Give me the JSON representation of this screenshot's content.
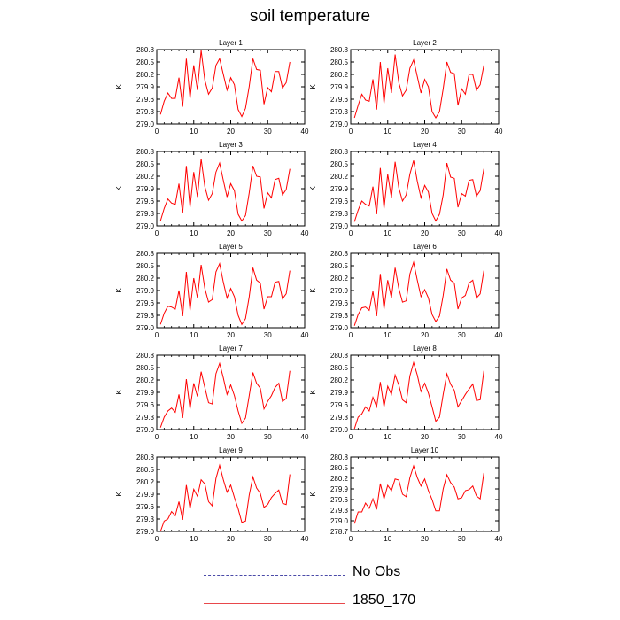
{
  "title": "soil temperature",
  "legend": [
    {
      "label": "No Obs",
      "style": "dashed",
      "color": "#4a4aa8"
    },
    {
      "label": "1850_170",
      "style": "solid",
      "color": "#ff0000"
    }
  ],
  "colors": {
    "series": "#ff0000",
    "axis": "#000000"
  },
  "chart_data": [
    {
      "type": "line",
      "title": "Layer 1",
      "ylabel": "K",
      "xlim": [
        0,
        40
      ],
      "ylim": [
        279.0,
        280.8
      ],
      "xticks": [
        "0",
        "10",
        "20",
        "30",
        "40"
      ],
      "yticks": [
        "279.0",
        "279.3",
        "279.6",
        "279.9",
        "280.2",
        "280.5",
        "280.8"
      ],
      "series": [
        {
          "x": [
            1,
            2,
            3,
            4,
            5,
            6,
            7,
            8,
            9,
            10,
            11,
            12,
            13,
            14,
            15,
            16,
            17,
            18,
            19,
            20,
            21,
            22,
            23,
            24,
            25,
            26,
            27,
            28,
            29,
            30,
            31,
            32,
            33,
            34,
            35,
            36
          ],
          "values": [
            279.23,
            279.55,
            279.75,
            279.62,
            279.62,
            280.12,
            279.42,
            280.58,
            279.62,
            280.42,
            279.82,
            280.78,
            280.06,
            279.72,
            279.87,
            280.42,
            280.58,
            280.2,
            279.82,
            280.12,
            279.95,
            279.35,
            279.18,
            279.38,
            279.91,
            280.58,
            280.32,
            280.3,
            279.48,
            279.88,
            279.78,
            280.27,
            280.27,
            279.87,
            280.0,
            280.5
          ]
        }
      ]
    },
    {
      "type": "line",
      "title": "Layer 2",
      "ylabel": "K",
      "xlim": [
        0,
        40
      ],
      "ylim": [
        279.0,
        280.8
      ],
      "xticks": [
        "0",
        "10",
        "20",
        "30",
        "40"
      ],
      "yticks": [
        "279.0",
        "279.3",
        "279.6",
        "279.9",
        "280.2",
        "280.5",
        "280.8"
      ],
      "series": [
        {
          "x": [
            1,
            2,
            3,
            4,
            5,
            6,
            7,
            8,
            9,
            10,
            11,
            12,
            13,
            14,
            15,
            16,
            17,
            18,
            19,
            20,
            21,
            22,
            23,
            24,
            25,
            26,
            27,
            28,
            29,
            30,
            31,
            32,
            33,
            34,
            35,
            36
          ],
          "values": [
            279.15,
            279.45,
            279.72,
            279.58,
            279.55,
            280.08,
            279.35,
            280.5,
            279.5,
            280.35,
            279.75,
            280.68,
            280.0,
            279.68,
            279.82,
            280.35,
            280.55,
            280.15,
            279.75,
            280.08,
            279.9,
            279.3,
            279.15,
            279.3,
            279.85,
            280.5,
            280.25,
            280.22,
            279.45,
            279.85,
            279.72,
            280.2,
            280.2,
            279.82,
            279.95,
            280.42
          ]
        }
      ]
    },
    {
      "type": "line",
      "title": "Layer 3",
      "ylabel": "K",
      "xlim": [
        0,
        40
      ],
      "ylim": [
        279.0,
        280.8
      ],
      "xticks": [
        "0",
        "10",
        "20",
        "30",
        "40"
      ],
      "yticks": [
        "279.0",
        "279.3",
        "279.6",
        "279.9",
        "280.2",
        "280.5",
        "280.8"
      ],
      "series": [
        {
          "x": [
            1,
            2,
            3,
            4,
            5,
            6,
            7,
            8,
            9,
            10,
            11,
            12,
            13,
            14,
            15,
            16,
            17,
            18,
            19,
            20,
            21,
            22,
            23,
            24,
            25,
            26,
            27,
            28,
            29,
            30,
            31,
            32,
            33,
            34,
            35,
            36
          ],
          "values": [
            279.12,
            279.42,
            279.65,
            279.55,
            279.52,
            280.02,
            279.3,
            280.45,
            279.45,
            280.3,
            279.7,
            280.62,
            279.95,
            279.62,
            279.78,
            280.3,
            280.52,
            280.1,
            279.7,
            280.02,
            279.85,
            279.28,
            279.12,
            279.25,
            279.8,
            280.45,
            280.2,
            280.18,
            279.42,
            279.8,
            279.68,
            280.12,
            280.15,
            279.75,
            279.88,
            280.38
          ]
        }
      ]
    },
    {
      "type": "line",
      "title": "Layer 4",
      "ylabel": "K",
      "xlim": [
        0,
        40
      ],
      "ylim": [
        279.0,
        280.8
      ],
      "xticks": [
        "0",
        "10",
        "20",
        "30",
        "40"
      ],
      "yticks": [
        "279.0",
        "279.3",
        "279.6",
        "279.9",
        "280.2",
        "280.5",
        "280.8"
      ],
      "series": [
        {
          "x": [
            1,
            2,
            3,
            4,
            5,
            6,
            7,
            8,
            9,
            10,
            11,
            12,
            13,
            14,
            15,
            16,
            17,
            18,
            19,
            20,
            21,
            22,
            23,
            24,
            25,
            26,
            27,
            28,
            29,
            30,
            31,
            32,
            33,
            34,
            35,
            36
          ],
          "values": [
            279.1,
            279.38,
            279.6,
            279.52,
            279.48,
            279.95,
            279.28,
            280.4,
            279.42,
            280.25,
            279.68,
            280.55,
            279.92,
            279.6,
            279.75,
            280.25,
            280.58,
            280.08,
            279.68,
            279.98,
            279.82,
            279.3,
            279.12,
            279.28,
            279.75,
            280.52,
            280.18,
            280.15,
            279.45,
            279.78,
            279.72,
            280.1,
            280.12,
            279.72,
            279.85,
            280.38
          ]
        }
      ]
    },
    {
      "type": "line",
      "title": "Layer 5",
      "ylabel": "K",
      "xlim": [
        0,
        40
      ],
      "ylim": [
        279.0,
        280.8
      ],
      "xticks": [
        "0",
        "10",
        "20",
        "30",
        "40"
      ],
      "yticks": [
        "279.0",
        "279.3",
        "279.6",
        "279.9",
        "280.2",
        "280.5",
        "280.8"
      ],
      "series": [
        {
          "x": [
            1,
            2,
            3,
            4,
            5,
            6,
            7,
            8,
            9,
            10,
            11,
            12,
            13,
            14,
            15,
            16,
            17,
            18,
            19,
            20,
            21,
            22,
            23,
            24,
            25,
            26,
            27,
            28,
            29,
            30,
            31,
            32,
            33,
            34,
            35,
            36
          ],
          "values": [
            279.08,
            279.35,
            279.52,
            279.5,
            279.45,
            279.9,
            279.28,
            280.35,
            279.42,
            280.2,
            279.72,
            280.52,
            279.95,
            279.62,
            279.68,
            280.35,
            280.55,
            280.1,
            279.72,
            279.95,
            279.75,
            279.3,
            279.08,
            279.22,
            279.75,
            280.45,
            280.15,
            280.08,
            279.45,
            279.75,
            279.75,
            280.1,
            280.12,
            279.7,
            279.82,
            280.38
          ]
        }
      ]
    },
    {
      "type": "line",
      "title": "Layer 6",
      "ylabel": "K",
      "xlim": [
        0,
        40
      ],
      "ylim": [
        279.0,
        280.8
      ],
      "xticks": [
        "0",
        "10",
        "20",
        "30",
        "40"
      ],
      "yticks": [
        "279.0",
        "279.3",
        "279.6",
        "279.9",
        "280.2",
        "280.5",
        "280.8"
      ],
      "series": [
        {
          "x": [
            1,
            2,
            3,
            4,
            5,
            6,
            7,
            8,
            9,
            10,
            11,
            12,
            13,
            14,
            15,
            16,
            17,
            18,
            19,
            20,
            21,
            22,
            23,
            24,
            25,
            26,
            27,
            28,
            29,
            30,
            31,
            32,
            33,
            34,
            35,
            36
          ],
          "values": [
            279.05,
            279.32,
            279.48,
            279.5,
            279.42,
            279.88,
            279.28,
            280.3,
            279.45,
            280.15,
            279.72,
            280.45,
            279.95,
            279.62,
            279.65,
            280.3,
            280.58,
            280.15,
            279.75,
            279.92,
            279.72,
            279.32,
            279.15,
            279.28,
            279.78,
            280.42,
            280.15,
            280.08,
            279.45,
            279.72,
            279.78,
            280.08,
            280.15,
            279.72,
            279.82,
            280.38
          ]
        }
      ]
    },
    {
      "type": "line",
      "title": "Layer 7",
      "ylabel": "K",
      "xlim": [
        0,
        40
      ],
      "ylim": [
        279.0,
        280.8
      ],
      "xticks": [
        "0",
        "10",
        "20",
        "30",
        "40"
      ],
      "yticks": [
        "279.0",
        "279.3",
        "279.6",
        "279.9",
        "280.2",
        "280.5",
        "280.8"
      ],
      "series": [
        {
          "x": [
            1,
            2,
            3,
            4,
            5,
            6,
            7,
            8,
            9,
            10,
            11,
            12,
            13,
            14,
            15,
            16,
            17,
            18,
            19,
            20,
            21,
            22,
            23,
            24,
            25,
            26,
            27,
            28,
            29,
            30,
            31,
            32,
            33,
            34,
            35,
            36
          ],
          "values": [
            279.05,
            279.3,
            279.45,
            279.52,
            279.42,
            279.85,
            279.28,
            280.22,
            279.5,
            280.12,
            279.8,
            280.4,
            280.02,
            279.65,
            279.62,
            280.35,
            280.6,
            280.25,
            279.85,
            280.08,
            279.82,
            279.45,
            279.15,
            279.28,
            279.82,
            280.38,
            280.12,
            280.0,
            279.5,
            279.68,
            279.82,
            280.02,
            280.12,
            279.68,
            279.75,
            280.42
          ]
        }
      ]
    },
    {
      "type": "line",
      "title": "Layer 8",
      "ylabel": "K",
      "xlim": [
        0,
        40
      ],
      "ylim": [
        279.0,
        280.8
      ],
      "xticks": [
        "0",
        "10",
        "20",
        "30",
        "40"
      ],
      "yticks": [
        "279.0",
        "279.3",
        "279.6",
        "279.9",
        "280.2",
        "280.5",
        "280.8"
      ],
      "series": [
        {
          "x": [
            1,
            2,
            3,
            4,
            5,
            6,
            7,
            8,
            9,
            10,
            11,
            12,
            13,
            14,
            15,
            16,
            17,
            18,
            19,
            20,
            21,
            22,
            23,
            24,
            25,
            26,
            27,
            28,
            29,
            30,
            31,
            32,
            33,
            34,
            35,
            36
          ],
          "values": [
            279.02,
            279.3,
            279.38,
            279.55,
            279.45,
            279.78,
            279.55,
            280.15,
            279.55,
            280.05,
            279.85,
            280.32,
            280.08,
            279.72,
            279.65,
            280.3,
            280.62,
            280.32,
            279.92,
            280.12,
            279.88,
            279.55,
            279.2,
            279.3,
            279.85,
            280.35,
            280.1,
            279.95,
            279.55,
            279.7,
            279.85,
            279.98,
            280.1,
            279.7,
            279.72,
            280.42
          ]
        }
      ]
    },
    {
      "type": "line",
      "title": "Layer 9",
      "ylabel": "K",
      "xlim": [
        0,
        40
      ],
      "ylim": [
        279.0,
        280.8
      ],
      "xticks": [
        "0",
        "10",
        "20",
        "30",
        "40"
      ],
      "yticks": [
        "279.0",
        "279.3",
        "279.6",
        "279.9",
        "280.2",
        "280.5",
        "280.8"
      ],
      "series": [
        {
          "x": [
            1,
            2,
            3,
            4,
            5,
            6,
            7,
            8,
            9,
            10,
            11,
            12,
            13,
            14,
            15,
            16,
            17,
            18,
            19,
            20,
            21,
            22,
            23,
            24,
            25,
            26,
            27,
            28,
            29,
            30,
            31,
            32,
            33,
            34,
            35,
            36
          ],
          "values": [
            279.0,
            279.25,
            279.3,
            279.48,
            279.38,
            279.72,
            279.28,
            280.12,
            279.55,
            280.02,
            279.85,
            280.25,
            280.15,
            279.72,
            279.62,
            280.28,
            280.6,
            280.25,
            279.95,
            280.12,
            279.82,
            279.55,
            279.22,
            279.25,
            279.88,
            280.32,
            280.05,
            279.92,
            279.58,
            279.65,
            279.82,
            279.92,
            280.0,
            279.68,
            279.65,
            280.38
          ]
        }
      ]
    },
    {
      "type": "line",
      "title": "Layer 10",
      "ylabel": "K",
      "xlim": [
        0,
        40
      ],
      "ylim": [
        278.7,
        280.8
      ],
      "xticks": [
        "0",
        "10",
        "20",
        "30",
        "40"
      ],
      "yticks": [
        "278.7",
        "279.0",
        "279.3",
        "279.6",
        "279.9",
        "280.2",
        "280.5",
        "280.8"
      ],
      "series": [
        {
          "x": [
            1,
            2,
            3,
            4,
            5,
            6,
            7,
            8,
            9,
            10,
            11,
            12,
            13,
            14,
            15,
            16,
            17,
            18,
            19,
            20,
            21,
            22,
            23,
            24,
            25,
            26,
            27,
            28,
            29,
            30,
            31,
            32,
            33,
            34,
            35,
            36
          ],
          "values": [
            278.92,
            279.25,
            279.25,
            279.5,
            279.35,
            279.62,
            279.32,
            280.05,
            279.62,
            280.0,
            279.85,
            280.18,
            280.15,
            279.75,
            279.68,
            280.22,
            280.55,
            280.22,
            279.98,
            280.18,
            279.85,
            279.6,
            279.28,
            279.28,
            279.9,
            280.3,
            280.08,
            279.95,
            279.62,
            279.65,
            279.85,
            279.88,
            279.98,
            279.7,
            279.62,
            280.35
          ]
        }
      ]
    }
  ]
}
